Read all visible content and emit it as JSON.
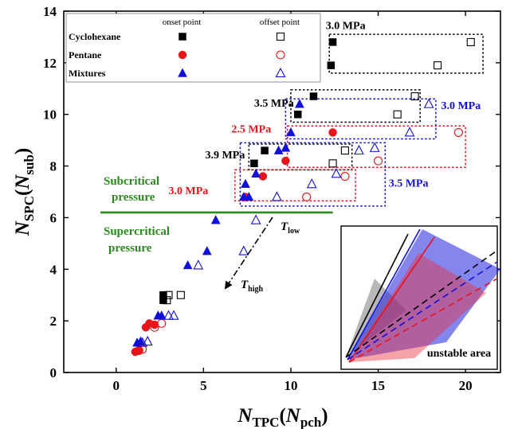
{
  "chart_data": {
    "type": "scatter",
    "xlabel": {
      "main": "N",
      "sub": "TPC",
      "paren_main": "N",
      "paren_sub": "pch"
    },
    "ylabel": {
      "main": "N",
      "sub": "SPC",
      "paren_main": "N",
      "paren_sub": "sub"
    },
    "xlim": [
      -3,
      22
    ],
    "ylim": [
      0,
      14
    ],
    "xticks": [
      0,
      5,
      10,
      15,
      20
    ],
    "yticks": [
      0,
      2,
      4,
      6,
      8,
      10,
      12,
      14
    ],
    "grid": false,
    "legend": {
      "placement": "top-left",
      "col_headers": [
        "onset point",
        "offset point"
      ],
      "rows": [
        {
          "label": "Cyclohexane",
          "marker": "square",
          "color": "#000000"
        },
        {
          "label": "Pentane",
          "marker": "circle",
          "color": "#e8141c"
        },
        {
          "label": "Mixtures",
          "marker": "triangle",
          "color": "#1010d8"
        }
      ]
    },
    "series": [
      {
        "name": "Cyclohexane",
        "kind": "onset",
        "marker": "square",
        "filled": true,
        "color": "#000000",
        "points": [
          [
            2.7,
            2.8
          ],
          [
            2.7,
            3.0
          ],
          [
            7.9,
            8.1
          ],
          [
            8.5,
            8.6
          ],
          [
            10.4,
            10.0
          ],
          [
            11.3,
            10.7
          ],
          [
            12.4,
            12.8
          ],
          [
            12.3,
            11.9
          ]
        ]
      },
      {
        "name": "Cyclohexane",
        "kind": "offset",
        "marker": "square",
        "filled": false,
        "color": "#000000",
        "points": [
          [
            2.9,
            2.8
          ],
          [
            3.0,
            3.0
          ],
          [
            3.7,
            3.0
          ],
          [
            12.4,
            8.1
          ],
          [
            13.1,
            8.6
          ],
          [
            16.1,
            10.0
          ],
          [
            17.1,
            10.7
          ],
          [
            18.4,
            11.9
          ],
          [
            20.3,
            12.8
          ]
        ]
      },
      {
        "name": "Pentane",
        "kind": "onset",
        "marker": "circle",
        "filled": true,
        "color": "#e8141c",
        "points": [
          [
            1.1,
            0.8
          ],
          [
            1.3,
            0.85
          ],
          [
            1.7,
            1.75
          ],
          [
            1.9,
            1.9
          ],
          [
            2.2,
            1.85
          ],
          [
            7.4,
            6.8
          ],
          [
            8.4,
            7.6
          ],
          [
            9.7,
            8.2
          ],
          [
            12.4,
            9.3
          ]
        ]
      },
      {
        "name": "Pentane",
        "kind": "offset",
        "marker": "circle",
        "filled": false,
        "color": "#e8141c",
        "points": [
          [
            1.3,
            0.85
          ],
          [
            1.5,
            0.9
          ],
          [
            2.2,
            1.75
          ],
          [
            2.6,
            1.9
          ],
          [
            10.9,
            6.8
          ],
          [
            13.1,
            7.6
          ],
          [
            15.0,
            8.2
          ],
          [
            19.6,
            9.3
          ]
        ]
      },
      {
        "name": "Mixtures",
        "kind": "onset",
        "marker": "triangle",
        "filled": true,
        "color": "#1010d8",
        "points": [
          [
            1.2,
            1.15
          ],
          [
            1.4,
            1.2
          ],
          [
            2.4,
            2.2
          ],
          [
            2.6,
            2.2
          ],
          [
            4.1,
            4.15
          ],
          [
            5.2,
            4.7
          ],
          [
            5.7,
            5.9
          ],
          [
            7.3,
            6.8
          ],
          [
            7.6,
            6.8
          ],
          [
            7.4,
            7.3
          ],
          [
            8.0,
            7.7
          ],
          [
            9.3,
            8.6
          ],
          [
            9.7,
            8.7
          ],
          [
            10.0,
            9.3
          ],
          [
            10.5,
            10.4
          ]
        ]
      },
      {
        "name": "Mixtures",
        "kind": "offset",
        "marker": "triangle",
        "filled": false,
        "color": "#1010d8",
        "points": [
          [
            1.5,
            1.15
          ],
          [
            1.8,
            1.2
          ],
          [
            3.0,
            2.2
          ],
          [
            3.3,
            2.2
          ],
          [
            4.7,
            4.15
          ],
          [
            7.3,
            4.7
          ],
          [
            8.0,
            5.9
          ],
          [
            9.2,
            6.8
          ],
          [
            11.2,
            7.3
          ],
          [
            12.6,
            7.7
          ],
          [
            13.9,
            8.6
          ],
          [
            14.8,
            8.7
          ],
          [
            16.8,
            9.3
          ],
          [
            17.9,
            10.4
          ]
        ]
      }
    ],
    "boxes": [
      {
        "color": "#000000",
        "x": [
          12.2,
          21.0
        ],
        "y": [
          11.6,
          13.1
        ]
      },
      {
        "color": "#000000",
        "x": [
          10.0,
          17.4
        ],
        "y": [
          9.7,
          10.95
        ]
      },
      {
        "color": "#1010d8",
        "x": [
          9.7,
          18.3
        ],
        "y": [
          9.05,
          10.6
        ]
      },
      {
        "color": "#e8141c",
        "x": [
          9.8,
          20.0
        ],
        "y": [
          7.95,
          9.55
        ]
      },
      {
        "color": "#000000",
        "x": [
          7.6,
          13.5
        ],
        "y": [
          7.85,
          8.85
        ]
      },
      {
        "color": "#1010d8",
        "x": [
          7.1,
          15.4
        ],
        "y": [
          6.45,
          8.9
        ]
      },
      {
        "color": "#e8141c",
        "x": [
          6.8,
          13.7
        ],
        "y": [
          6.65,
          7.85
        ]
      }
    ],
    "box_labels": [
      {
        "text": "3.0 MPa",
        "color": "#000000",
        "x": 12.0,
        "y": 13.3
      },
      {
        "text": "3.5 MPa",
        "color": "#000000",
        "x": 7.9,
        "y": 10.3
      },
      {
        "text": "3.0 MPa",
        "color": "#1010d8",
        "x": 18.6,
        "y": 10.2
      },
      {
        "text": "2.5 MPa",
        "color": "#e8141c",
        "x": 6.6,
        "y": 9.3
      },
      {
        "text": "3.9 MPa",
        "color": "#000000",
        "x": 5.1,
        "y": 8.3
      },
      {
        "text": "3.5 MPa",
        "color": "#1010d8",
        "x": 15.6,
        "y": 7.2
      },
      {
        "text": "3.0 MPa",
        "color": "#e8141c",
        "x": 3.0,
        "y": 6.9
      }
    ],
    "pressure_line": {
      "y": 6.2,
      "x": [
        -0.9,
        12.4
      ],
      "color": "#2a8a1e"
    },
    "annotations": {
      "subcritical": [
        "Subcritical",
        "pressure"
      ],
      "supercritical": [
        "Supercritical",
        "pressure"
      ],
      "t_low": {
        "main": "T",
        "sub": "low"
      },
      "t_high": {
        "main": "T",
        "sub": "high"
      },
      "inset_label": "unstable area"
    }
  }
}
